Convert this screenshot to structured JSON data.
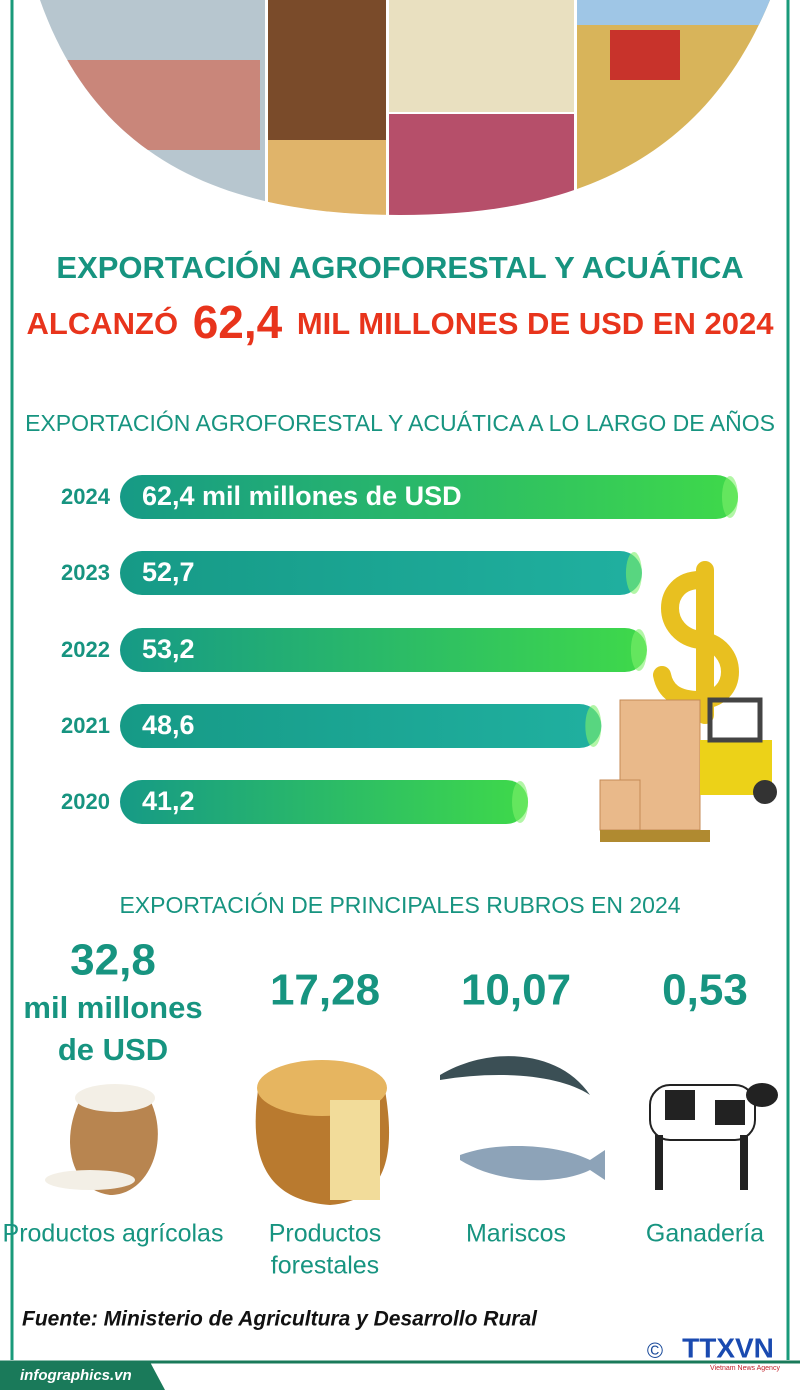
{
  "header": {
    "title_line1": "EXPORTACIÓN AGROFORESTAL Y ACUÁTICA",
    "line2_pre": "ALCANZÓ",
    "line2_highlight": "62,4",
    "line2_post": "MIL MILLONES DE USD EN 2024"
  },
  "chart_data": {
    "type": "bar",
    "orientation": "horizontal",
    "title": "EXPORTACIÓN AGROFORESTAL Y ACUÁTICA A LO LARGO DE AÑOS",
    "categories": [
      "2024",
      "2023",
      "2022",
      "2021",
      "2020"
    ],
    "values": [
      62.4,
      52.7,
      53.2,
      48.6,
      41.2
    ],
    "value_labels": [
      "62,4 mil millones de USD",
      "52,7",
      "53,2",
      "48,6",
      "41,2"
    ],
    "colors": [
      "#3fd94a",
      "#20b0a0",
      "#3fd94a",
      "#20b0a0",
      "#3fd94a"
    ]
  },
  "rubros": {
    "title": "EXPORTACIÓN DE PRINCIPALES RUBROS EN 2024",
    "unit_line1": "mil millones",
    "unit_line2": "de USD",
    "items": [
      {
        "value": "32,8",
        "label": [
          "Productos agrícolas"
        ]
      },
      {
        "value": "17,28",
        "label": [
          "Productos",
          "forestales"
        ]
      },
      {
        "value": "10,07",
        "label": [
          "Mariscos"
        ]
      },
      {
        "value": "0,53",
        "label": [
          "Ganadería"
        ]
      }
    ]
  },
  "source": "Fuente: Ministerio de Agricultura y Desarrollo Rural",
  "footer": {
    "site": "infographics.vn",
    "copyright": "©",
    "logo": "TTXVN",
    "logo_sub": "Vietnam News Agency"
  }
}
